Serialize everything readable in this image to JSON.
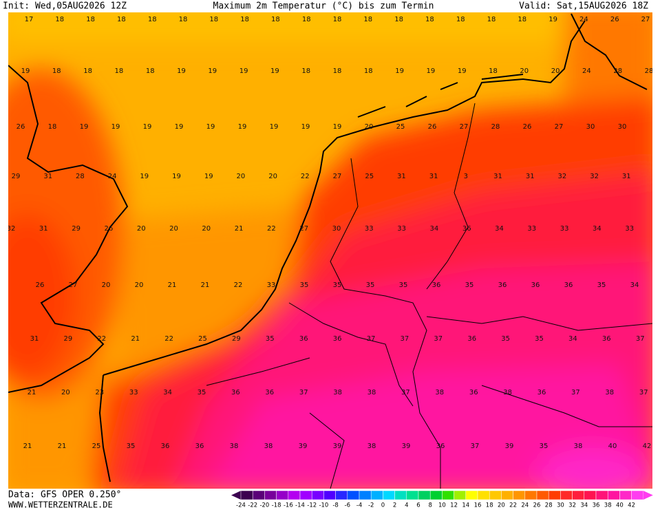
{
  "header": {
    "init": "Init: Wed,05AUG2026 12Z",
    "title": "Maximum 2m Temperatur (°C) bis zum Termin",
    "valid": "Valid: Sat,15AUG2026 18Z"
  },
  "footer": {
    "data": "Data: GFS OPER 0.250°",
    "site": "WWW.WETTERZENTRALE.DE"
  },
  "map": {
    "rows": [
      [
        17,
        18,
        18,
        18,
        18,
        18,
        18,
        18,
        18,
        18,
        18,
        18,
        18,
        18,
        18,
        18,
        18,
        19,
        24,
        26,
        27
      ],
      [
        19,
        18,
        18,
        18,
        18,
        19,
        19,
        19,
        19,
        18,
        18,
        18,
        19,
        19,
        19,
        18,
        20,
        20,
        24,
        28,
        28
      ],
      [
        26,
        18,
        19,
        19,
        19,
        19,
        19,
        19,
        19,
        19,
        19,
        20,
        25,
        26,
        27,
        28,
        26,
        27,
        30,
        30
      ],
      [
        29,
        31,
        28,
        24,
        19,
        19,
        19,
        20,
        20,
        22,
        27,
        25,
        31,
        31,
        3,
        31,
        31,
        32,
        32,
        31
      ],
      [
        32,
        31,
        29,
        26,
        20,
        20,
        20,
        21,
        22,
        27,
        30,
        33,
        33,
        34,
        36,
        34,
        33,
        33,
        34,
        33
      ],
      [
        26,
        27,
        20,
        20,
        21,
        21,
        22,
        33,
        35,
        35,
        35,
        35,
        36,
        35,
        36,
        36,
        36,
        35,
        34
      ],
      [
        31,
        29,
        22,
        21,
        22,
        25,
        29,
        35,
        36,
        36,
        37,
        37,
        37,
        36,
        35,
        35,
        34,
        36,
        37
      ],
      [
        21,
        20,
        23,
        33,
        34,
        35,
        36,
        36,
        37,
        38,
        38,
        37,
        38,
        36,
        38,
        36,
        37,
        38,
        37
      ],
      [
        21,
        21,
        25,
        35,
        36,
        36,
        38,
        38,
        39,
        39,
        38,
        39,
        36,
        37,
        39,
        35,
        38,
        40,
        42
      ]
    ]
  },
  "legend": {
    "values": [
      -24,
      -22,
      -20,
      -18,
      -16,
      -14,
      -12,
      -10,
      -8,
      -6,
      -4,
      -2,
      0,
      2,
      4,
      6,
      8,
      10,
      12,
      14,
      16,
      18,
      20,
      22,
      24,
      26,
      28,
      30,
      32,
      34,
      36,
      38,
      40,
      42
    ],
    "colors": [
      "#3c0050",
      "#5a0078",
      "#78009b",
      "#9600c8",
      "#b400f0",
      "#a000ff",
      "#7800ff",
      "#5000ff",
      "#2828ff",
      "#0050ff",
      "#0080ff",
      "#00b0ff",
      "#00d8ff",
      "#00e0c0",
      "#00e090",
      "#00d060",
      "#00d030",
      "#30e000",
      "#a0f000",
      "#ffff00",
      "#ffe000",
      "#ffc800",
      "#ffb000",
      "#ff9600",
      "#ff7800",
      "#ff5a00",
      "#ff3c00",
      "#ff2a28",
      "#ff1e3c",
      "#ff1450",
      "#ff1478",
      "#ff14a0",
      "#ff28c8",
      "#ff3cf0"
    ]
  }
}
